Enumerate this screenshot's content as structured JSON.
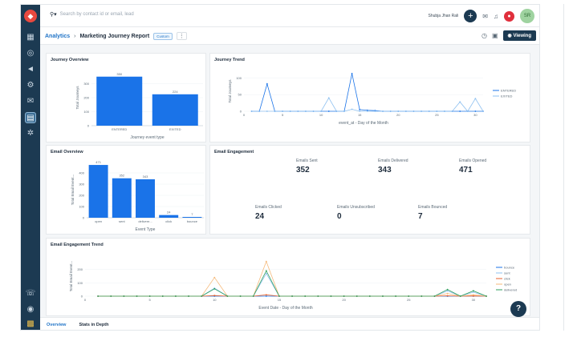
{
  "search": {
    "placeholder": "Search by contact id or email, lead"
  },
  "topbar": {
    "user_name": "Shubja Jhan Rali",
    "add_label": "+",
    "avatar_initials": "SR"
  },
  "breadcrumb": {
    "root": "Analytics",
    "separator": "›",
    "title": "Marketing Journey Report",
    "badge": "Custom",
    "menu": "⋮"
  },
  "header_actions": {
    "viewing_label": "Viewing"
  },
  "tabs": [
    {
      "label": "Overview"
    },
    {
      "label": "Stats in Depth"
    }
  ],
  "help_label": "?",
  "email_engagement": {
    "title": "Email Engagement",
    "metrics": [
      {
        "label": "Emails Sent",
        "value": "352"
      },
      {
        "label": "Emails Delivered",
        "value": "343"
      },
      {
        "label": "Emails Opened",
        "value": "471"
      },
      {
        "label": "Emails Clicked",
        "value": "24"
      },
      {
        "label": "Emails Unsubscribed",
        "value": "0"
      },
      {
        "label": "Emails Bounced",
        "value": "7"
      }
    ]
  },
  "chart_data": [
    {
      "id": "journey-overview",
      "type": "bar",
      "title": "Journey Overview",
      "xlabel": "Journey event type",
      "ylabel": "Total Journeys",
      "categories": [
        "ENTERED",
        "EXITED"
      ],
      "values": [
        350,
        224
      ],
      "data_labels": [
        "350",
        "224"
      ],
      "ylim": [
        0,
        400
      ],
      "yticks": [
        0,
        100,
        200,
        300
      ],
      "color": "#1a73e8"
    },
    {
      "id": "journey-trend",
      "type": "line",
      "title": "Journey Trend",
      "xlabel": "event_at - Day of the Month",
      "ylabel": "Total Journeys",
      "x": [
        1,
        2,
        3,
        4,
        5,
        6,
        7,
        8,
        9,
        10,
        11,
        12,
        13,
        14,
        15,
        16,
        17,
        18,
        19,
        20,
        21,
        22,
        23,
        24,
        25,
        26,
        27,
        28,
        29,
        30,
        31
      ],
      "xlim": [
        0,
        31
      ],
      "xticks": [
        0,
        5,
        10,
        15,
        20,
        25,
        30
      ],
      "ylim": [
        0,
        120
      ],
      "yticks": [
        0,
        50,
        100
      ],
      "legend": "right",
      "series": [
        {
          "name": "ENTERED",
          "color": "#1a73e8",
          "values": [
            0,
            0,
            82,
            0,
            0,
            0,
            0,
            0,
            0,
            0,
            0,
            0,
            0,
            113,
            5,
            3,
            2,
            0,
            0,
            0,
            0,
            0,
            0,
            0,
            0,
            0,
            0,
            0,
            0,
            0,
            0
          ]
        },
        {
          "name": "EXITED",
          "color": "#8ec0f0",
          "values": [
            0,
            0,
            0,
            0,
            0,
            0,
            0,
            0,
            0,
            0,
            40,
            0,
            0,
            6,
            0,
            0,
            0,
            0,
            0,
            0,
            0,
            0,
            0,
            0,
            0,
            0,
            0,
            28,
            0,
            38,
            0
          ]
        }
      ]
    },
    {
      "id": "email-overview",
      "type": "bar",
      "title": "Email Overview",
      "xlabel": "Event Type",
      "ylabel": "Total Email Event...",
      "categories": [
        "open",
        "sent",
        "delivere...",
        "click",
        "bounce"
      ],
      "values": [
        471,
        352,
        343,
        24,
        7
      ],
      "data_labels": [
        "471",
        "352",
        "343",
        "24",
        "7"
      ],
      "ylim": [
        0,
        500
      ],
      "yticks": [
        0,
        100,
        200,
        300,
        400
      ],
      "color": "#1a73e8"
    },
    {
      "id": "email-engagement-trend",
      "type": "line",
      "title": "Email Engagement Trend",
      "xlabel": "Event Date - Day of the Month",
      "ylabel": "Total Email Event...",
      "x": [
        1,
        2,
        3,
        4,
        5,
        6,
        7,
        8,
        9,
        10,
        11,
        12,
        13,
        14,
        15,
        16,
        17,
        18,
        19,
        20,
        21,
        22,
        23,
        24,
        25,
        26,
        27,
        28,
        29,
        30,
        31
      ],
      "xlim": [
        0,
        31
      ],
      "xticks": [
        0,
        5,
        10,
        15,
        20,
        25,
        30
      ],
      "ylim": [
        0,
        300
      ],
      "yticks": [
        0,
        100,
        200
      ],
      "legend": "right",
      "series": [
        {
          "name": "bounce",
          "color": "#1a73e8",
          "values": [
            0,
            0,
            0,
            0,
            0,
            0,
            0,
            0,
            0,
            0,
            0,
            0,
            0,
            0,
            0,
            0,
            0,
            0,
            0,
            0,
            0,
            0,
            0,
            0,
            0,
            0,
            0,
            0,
            0,
            0,
            0
          ]
        },
        {
          "name": "sent",
          "color": "#8ec0f0",
          "values": [
            0,
            0,
            0,
            0,
            0,
            0,
            0,
            0,
            0,
            60,
            0,
            0,
            0,
            170,
            0,
            0,
            0,
            0,
            0,
            0,
            0,
            0,
            0,
            0,
            0,
            0,
            0,
            40,
            0,
            30,
            0
          ]
        },
        {
          "name": "click",
          "color": "#e8622c",
          "values": [
            0,
            0,
            0,
            0,
            0,
            0,
            0,
            0,
            0,
            5,
            0,
            0,
            0,
            10,
            0,
            0,
            0,
            0,
            0,
            0,
            0,
            0,
            0,
            0,
            0,
            0,
            0,
            3,
            0,
            2,
            0
          ]
        },
        {
          "name": "open",
          "color": "#f5b97a",
          "values": [
            0,
            0,
            0,
            0,
            0,
            0,
            0,
            0,
            0,
            140,
            0,
            0,
            0,
            260,
            0,
            0,
            0,
            0,
            0,
            0,
            0,
            0,
            0,
            0,
            0,
            0,
            0,
            20,
            0,
            10,
            0
          ]
        },
        {
          "name": "delivered",
          "color": "#2e9e5b",
          "values": [
            0,
            0,
            0,
            0,
            0,
            0,
            0,
            0,
            0,
            55,
            0,
            0,
            0,
            190,
            0,
            0,
            0,
            0,
            0,
            0,
            0,
            0,
            0,
            0,
            0,
            0,
            0,
            50,
            0,
            40,
            0
          ]
        }
      ]
    }
  ]
}
